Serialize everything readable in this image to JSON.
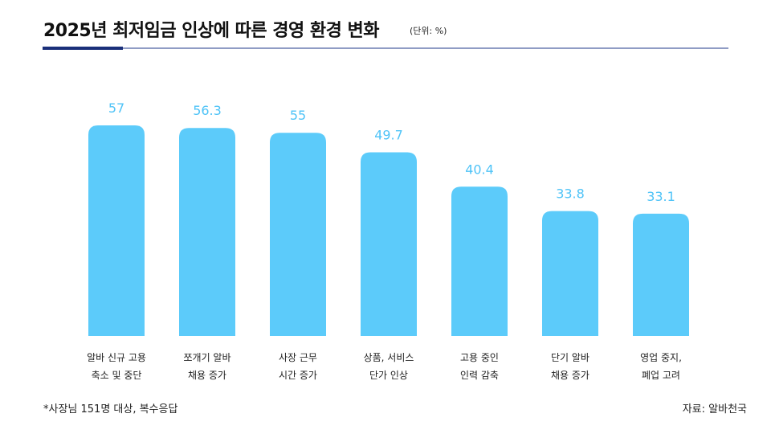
{
  "chart_data": {
    "type": "bar",
    "title": "2025년 최저임금 인상에 따른 경영 환경 변화",
    "subtitle": "(단위: %)",
    "categories": [
      "알바 신규 고용\n축소 및 중단",
      "쪼개기 알바\n채용 증가",
      "사장 근무\n시간 증가",
      "상품, 서비스\n단가 인상",
      "고용 중인\n인력 감축",
      "단기 알바\n채용 증가",
      "영업 중지,\n폐업 고려"
    ],
    "values": [
      57,
      56.3,
      55,
      49.7,
      40.4,
      33.8,
      33.1
    ],
    "color": "#5ccbfa",
    "footnote": "*사장님 151명 대상, 복수응답",
    "source": "자료: 알바천국"
  }
}
